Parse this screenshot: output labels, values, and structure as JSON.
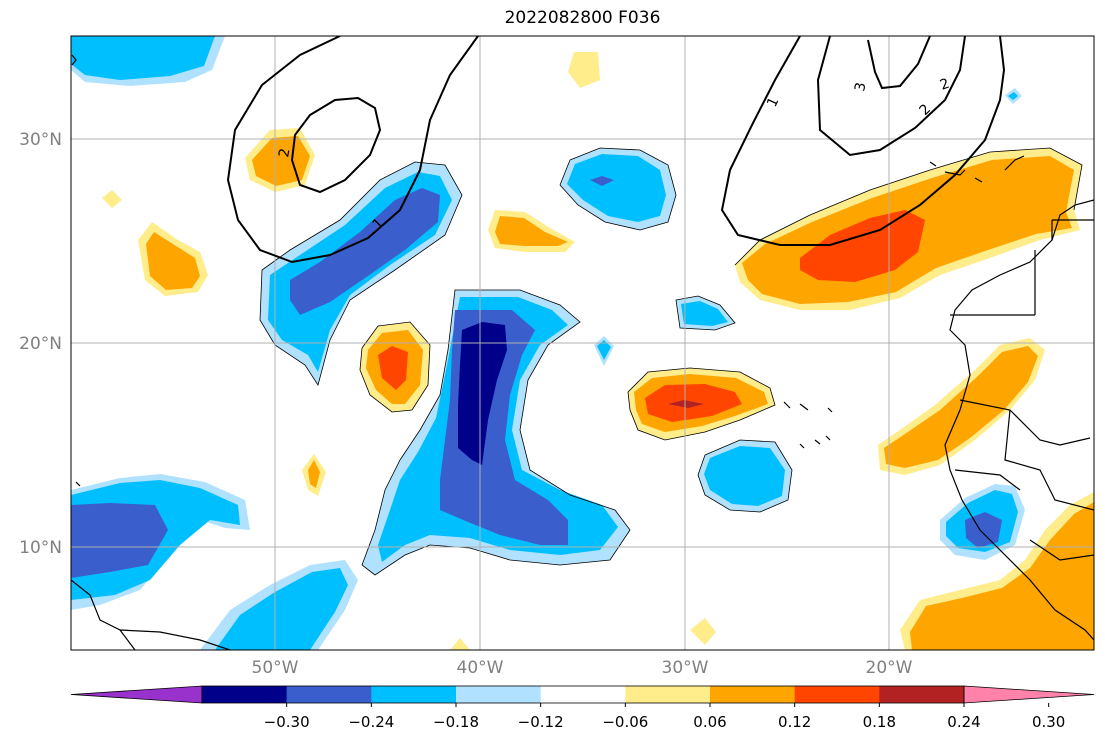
{
  "title": "2022082800 F036",
  "map": {
    "lat_labels": [
      "30°N",
      "20°N",
      "10°N"
    ],
    "lon_labels": [
      "50°W",
      "40°W",
      "30°W",
      "20°W"
    ],
    "contour_labels": [
      "1",
      "2",
      "3",
      "2",
      "1",
      "2"
    ]
  },
  "colorbar": {
    "colors": [
      "#9932CC",
      "#00008B",
      "#3A5FCD",
      "#00BFFF",
      "#B0E2FF",
      "#FFFFFF",
      "#FFEC8B",
      "#FFA500",
      "#FF4500",
      "#B22222",
      "#FF82AB"
    ],
    "tick_labels": [
      "−0.30",
      "−0.24",
      "−0.18",
      "−0.12",
      "−0.06",
      "0.06",
      "0.12",
      "0.18",
      "0.24",
      "0.30"
    ]
  }
}
